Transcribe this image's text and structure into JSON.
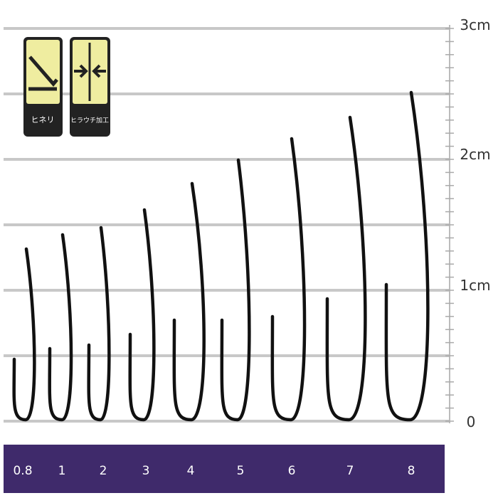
{
  "badges": [
    {
      "label": "ヒネリ"
    },
    {
      "label": "ヒラウチ加工"
    }
  ],
  "scale": {
    "labels": [
      "3cm",
      "2cm",
      "1cm",
      "0"
    ]
  },
  "sizes": [
    "0.8",
    "1",
    "2",
    "3",
    "4",
    "5",
    "6",
    "7",
    "8"
  ]
}
